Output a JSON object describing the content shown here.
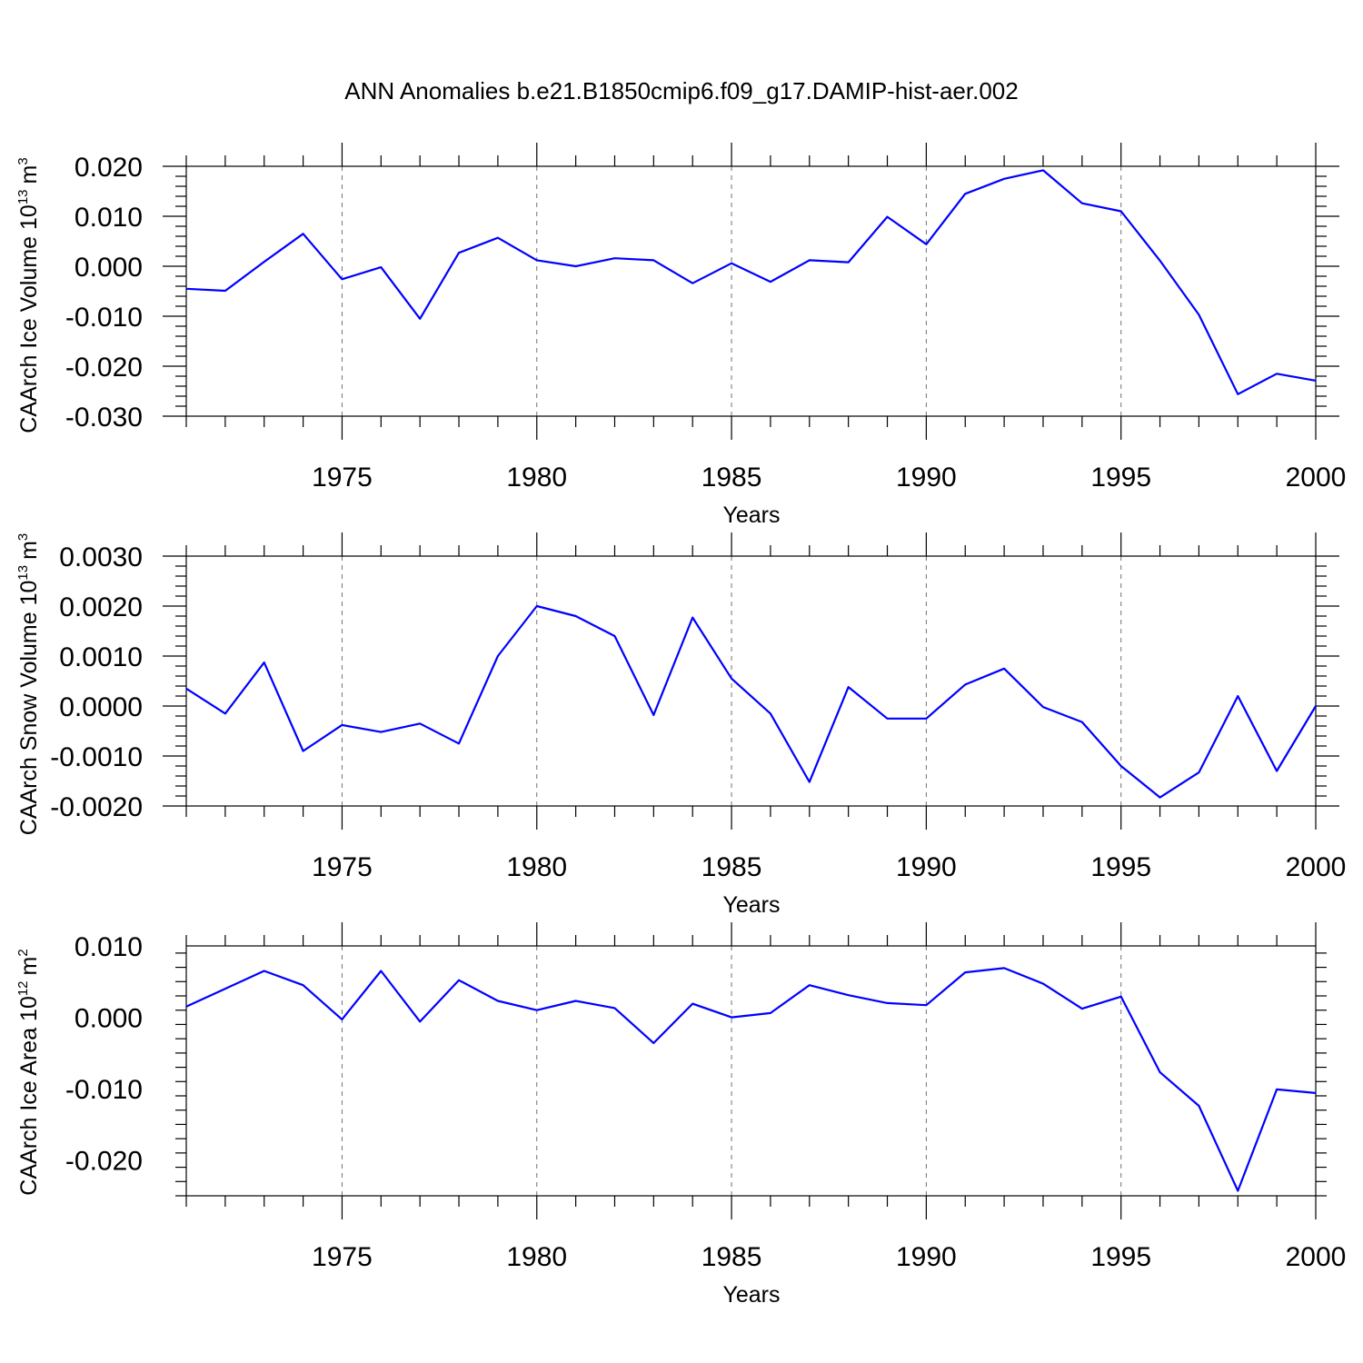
{
  "figure": {
    "title": "ANN Anomalies b.e21.B1850cmip6.f09_g17.DAMIP-hist-aer.002"
  },
  "chart_data": [
    {
      "type": "line",
      "title": "",
      "xlabel": "Years",
      "ylabel": "CAArch Ice Volume 10",
      "ylabel_exponent": "13",
      "ylabel_unit": "m",
      "ylabel_unit_exponent": "3",
      "xlim": [
        1971,
        2000
      ],
      "ylim": [
        -0.03,
        0.02
      ],
      "x_ticks": [
        "1975",
        "1980",
        "1985",
        "1990",
        "1995",
        "2000"
      ],
      "y_ticks": [
        "0.020",
        "0.010",
        "0.000",
        "-0.010",
        "-0.020",
        "-0.030"
      ],
      "grid": "dashed vertical at labeled years",
      "series": [
        {
          "color": "#0000ff",
          "x": [
            1971,
            1972,
            1973,
            1974,
            1975,
            1976,
            1977,
            1978,
            1979,
            1980,
            1981,
            1982,
            1983,
            1984,
            1985,
            1986,
            1987,
            1988,
            1989,
            1990,
            1991,
            1992,
            1993,
            1994,
            1995,
            1996,
            1997,
            1998,
            1999,
            2000
          ],
          "y": [
            -0.0045,
            -0.0049,
            0.0009,
            0.0065,
            -0.0026,
            -0.0002,
            -0.0105,
            0.0027,
            0.0057,
            0.0012,
            0.0,
            0.0016,
            0.0012,
            -0.0034,
            0.0006,
            -0.0031,
            0.0012,
            0.0008,
            0.0099,
            0.0044,
            0.0145,
            0.0175,
            0.0192,
            0.0126,
            0.011,
            0.0011,
            -0.0097,
            -0.0256,
            -0.0215,
            -0.0229
          ]
        }
      ]
    },
    {
      "type": "line",
      "title": "",
      "xlabel": "Years",
      "ylabel": "CAArch Snow Volume 10",
      "ylabel_exponent": "13",
      "ylabel_unit": "m",
      "ylabel_unit_exponent": "3",
      "xlim": [
        1971,
        2000
      ],
      "ylim": [
        -0.002,
        0.003
      ],
      "x_ticks": [
        "1975",
        "1980",
        "1985",
        "1990",
        "1995",
        "2000"
      ],
      "y_ticks": [
        "0.0030",
        "0.0020",
        "0.0010",
        "0.0000",
        "-0.0010",
        "-0.0020"
      ],
      "grid": "dashed vertical at labeled years",
      "series": [
        {
          "color": "#0000ff",
          "x": [
            1971,
            1972,
            1973,
            1974,
            1975,
            1976,
            1977,
            1978,
            1979,
            1980,
            1981,
            1982,
            1983,
            1984,
            1985,
            1986,
            1987,
            1988,
            1989,
            1990,
            1991,
            1992,
            1993,
            1994,
            1995,
            1996,
            1997,
            1998,
            1999,
            2000
          ],
          "y": [
            0.00035,
            -0.00015,
            0.00087,
            -0.0009,
            -0.00038,
            -0.00052,
            -0.00035,
            -0.00075,
            0.001,
            0.002,
            0.0018,
            0.0014,
            -0.00018,
            0.00177,
            0.00055,
            -0.00015,
            -0.00152,
            0.00038,
            -0.00025,
            -0.00025,
            0.00043,
            0.00075,
            -2e-05,
            -0.00032,
            -0.0012,
            -0.00183,
            -0.00133,
            0.0002,
            -0.0013,
            0.0
          ]
        }
      ]
    },
    {
      "type": "line",
      "title": "",
      "xlabel": "Years",
      "ylabel": "CAArch Ice Area 10",
      "ylabel_exponent": "12",
      "ylabel_unit": "m",
      "ylabel_unit_exponent": "2",
      "xlim": [
        1971,
        2000
      ],
      "ylim": [
        -0.025,
        0.01
      ],
      "x_ticks": [
        "1975",
        "1980",
        "1985",
        "1990",
        "1995",
        "2000"
      ],
      "y_ticks": [
        "0.010",
        "0.000",
        "-0.010",
        "-0.020"
      ],
      "grid": "dashed vertical at labeled years",
      "series": [
        {
          "color": "#0000ff",
          "x": [
            1971,
            1972,
            1973,
            1974,
            1975,
            1976,
            1977,
            1978,
            1979,
            1980,
            1981,
            1982,
            1983,
            1984,
            1985,
            1986,
            1987,
            1988,
            1989,
            1990,
            1991,
            1992,
            1993,
            1994,
            1995,
            1996,
            1997,
            1998,
            1999,
            2000
          ],
          "y": [
            0.0015,
            0.004,
            0.0065,
            0.0045,
            -0.0003,
            0.0065,
            -0.0006,
            0.0052,
            0.0023,
            0.001,
            0.0023,
            0.0013,
            -0.0036,
            0.0019,
            0.0,
            0.0006,
            0.0045,
            0.0031,
            0.002,
            0.0017,
            0.0063,
            0.0069,
            0.0047,
            0.0012,
            0.0029,
            -0.0077,
            -0.0124,
            -0.0243,
            -0.0101,
            -0.0106
          ]
        }
      ]
    }
  ]
}
